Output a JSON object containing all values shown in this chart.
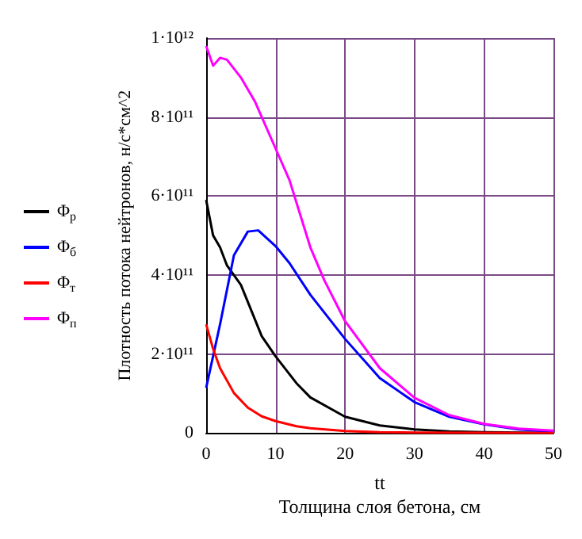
{
  "chart_data": {
    "type": "line",
    "xlabel": "tt\nТолщина слоя бетона, см",
    "ylabel": "Плотность потока нейтронов, н/с*см^2",
    "xlim": [
      0,
      50
    ],
    "xticks": [
      0,
      10,
      20,
      30,
      40,
      50
    ],
    "ylim": [
      0,
      1000000000000.0
    ],
    "yticks": [
      0,
      {
        "value": 200000000000.0,
        "label": "2·10¹¹"
      },
      {
        "value": 400000000000.0,
        "label": "4·10¹¹"
      },
      {
        "value": 600000000000.0,
        "label": "6·10¹¹"
      },
      {
        "value": 800000000000.0,
        "label": "8·10¹¹"
      },
      {
        "value": 1000000000000.0,
        "label": "1·10¹²"
      }
    ],
    "grid": true,
    "legend": "left",
    "marker": "none",
    "line_style": "solid",
    "series": [
      {
        "name": "Φ$_{р}$",
        "color": "#000000",
        "x": [
          0,
          1,
          2,
          3,
          5,
          8,
          10,
          13,
          15,
          20,
          25,
          30,
          35,
          40,
          50
        ],
        "values": [
          590000000000.0,
          500000000000.0,
          470000000000.0,
          424000000000.0,
          375000000000.0,
          245000000000.0,
          194000000000.0,
          126000000000.0,
          90000000000.0,
          41000000000.0,
          19000000000.0,
          9000000000.0,
          4000000000.0,
          2000000000.0,
          0
        ]
      },
      {
        "name": "Φ$_{б}$",
        "color": "#0000ff",
        "x": [
          0,
          2,
          4,
          6,
          7.5,
          10,
          12,
          15,
          20,
          25,
          30,
          35,
          40,
          45,
          50
        ],
        "values": [
          114000000000.0,
          275000000000.0,
          450000000000.0,
          510000000000.0,
          513000000000.0,
          473000000000.0,
          430000000000.0,
          350000000000.0,
          238000000000.0,
          139000000000.0,
          78000000000.0,
          41000000000.0,
          22000000000.0,
          9000000000.0,
          3000000000.0
        ]
      },
      {
        "name": "Φ$_{т}$",
        "color": "#ff0000",
        "x": [
          0,
          1,
          2,
          4,
          6,
          8,
          10,
          13,
          15,
          20,
          25,
          30,
          50
        ],
        "values": [
          275000000000.0,
          213000000000.0,
          164000000000.0,
          101000000000.0,
          64000000000.0,
          42000000000.0,
          30000000000.0,
          17000000000.0,
          12000000000.0,
          5000000000.0,
          2000000000.0,
          1000000000.0,
          0
        ]
      },
      {
        "name": "Φ$_{п}$",
        "color": "#ff00ff",
        "x": [
          0,
          1,
          2,
          3,
          5,
          7,
          10,
          12,
          15,
          17,
          20,
          25,
          30,
          35,
          40,
          45,
          50
        ],
        "values": [
          980000000000.0,
          930000000000.0,
          950000000000.0,
          945000000000.0,
          900000000000.0,
          840000000000.0,
          720000000000.0,
          640000000000.0,
          470000000000.0,
          387000000000.0,
          283000000000.0,
          164000000000.0,
          89000000000.0,
          45000000000.0,
          23000000000.0,
          11000000000.0,
          6000000000.0
        ]
      }
    ]
  }
}
